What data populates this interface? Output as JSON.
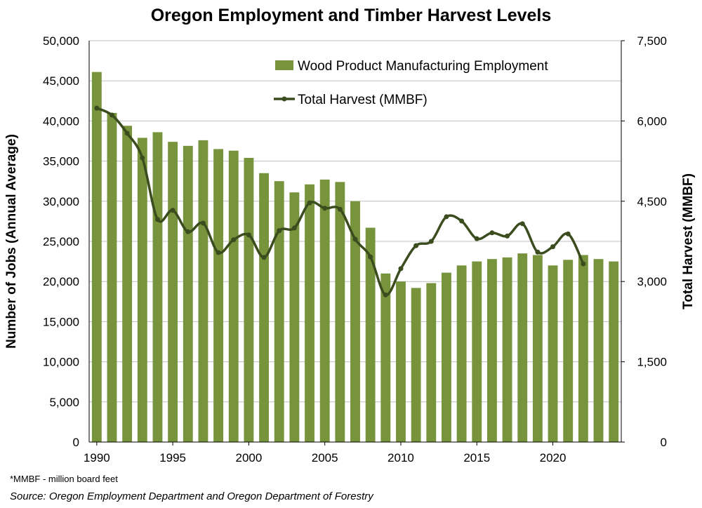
{
  "chart_data": {
    "type": "bar_line",
    "title": "Oregon Employment and Timber Harvest Levels",
    "y_label": "Number of Jobs (Annual Average)",
    "y2_label": "Total Harvest (MMBF)",
    "footnote": "*MMBF - million board feet",
    "source": "Source: Oregon Employment Department and Oregon Department of Forestry",
    "x": [
      1990,
      1991,
      1992,
      1993,
      1994,
      1995,
      1996,
      1997,
      1998,
      1999,
      2000,
      2001,
      2002,
      2003,
      2004,
      2005,
      2006,
      2007,
      2008,
      2009,
      2010,
      2011,
      2012,
      2013,
      2014,
      2015,
      2016,
      2017,
      2018,
      2019,
      2020,
      2021,
      2022,
      2023,
      2024
    ],
    "xlim": [
      1989.5,
      2024.5
    ],
    "xticks": [
      1990,
      1995,
      2000,
      2005,
      2010,
      2015,
      2020
    ],
    "ylim": [
      0,
      50000
    ],
    "yticks": [
      0,
      {
        "value": 5000,
        "label": "5,000"
      },
      {
        "value": 10000,
        "label": "10,000"
      },
      {
        "value": 15000,
        "label": "15,000"
      },
      {
        "value": 20000,
        "label": "20,000"
      },
      {
        "value": 25000,
        "label": "25,000"
      },
      {
        "value": 30000,
        "label": "30,000"
      },
      {
        "value": 35000,
        "label": "35,000"
      },
      {
        "value": 40000,
        "label": "40,000"
      },
      {
        "value": 45000,
        "label": "45,000"
      },
      {
        "value": 50000,
        "label": "50,000"
      }
    ],
    "y2lim": [
      0,
      7500
    ],
    "y2ticks": [
      0,
      {
        "value": 1500,
        "label": "1,500"
      },
      {
        "value": 3000,
        "label": "3,000"
      },
      {
        "value": 4500,
        "label": "4,500"
      },
      {
        "value": 6000,
        "label": "6,000"
      },
      {
        "value": 7500,
        "label": "7,500"
      }
    ],
    "grid": true,
    "series": [
      {
        "name": "Wood Product Manufacturing Employment",
        "type": "bar",
        "color": "#77933c",
        "values": [
          46100,
          41000,
          39400,
          37900,
          38600,
          37400,
          36900,
          37600,
          36500,
          36300,
          35400,
          33500,
          32500,
          31100,
          32100,
          32700,
          32400,
          30000,
          26700,
          21000,
          20000,
          19200,
          19800,
          21100,
          22000,
          22500,
          22800,
          23000,
          23500,
          23300,
          22000,
          22700,
          23300,
          22800,
          22500
        ]
      },
      {
        "name": "Total Harvest (MMBF)",
        "type": "line",
        "axis": "y2",
        "color": "#3b4d1e",
        "values": [
          6240,
          6110,
          5770,
          5310,
          4160,
          4330,
          3930,
          4090,
          3540,
          3780,
          3870,
          3450,
          3950,
          4000,
          4470,
          4370,
          4350,
          3790,
          3460,
          2750,
          3240,
          3670,
          3750,
          4210,
          4130,
          3800,
          3910,
          3850,
          4080,
          3550,
          3650,
          3890,
          3330,
          null,
          null
        ]
      }
    ]
  }
}
